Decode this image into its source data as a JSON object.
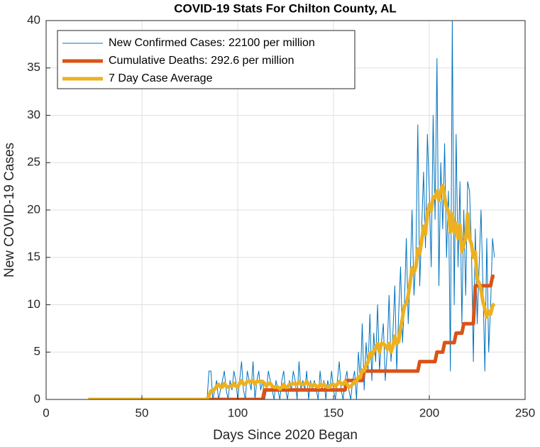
{
  "chart_data": {
    "type": "line",
    "title": "COVID-19 Stats For Chilton County, AL",
    "x_label": "Days Since 2020 Began",
    "y_label": "New COVID-19 Cases",
    "xlim": [
      0,
      250
    ],
    "ylim": [
      0,
      40
    ],
    "xticks": [
      0,
      50,
      100,
      150,
      200,
      250
    ],
    "yticks": [
      0,
      5,
      10,
      15,
      20,
      25,
      30,
      35,
      40
    ],
    "grid": true,
    "legend": "top-left",
    "x": [
      22,
      23,
      24,
      25,
      26,
      27,
      28,
      29,
      30,
      31,
      32,
      33,
      34,
      35,
      36,
      37,
      38,
      39,
      40,
      41,
      42,
      43,
      44,
      45,
      46,
      47,
      48,
      49,
      50,
      51,
      52,
      53,
      54,
      55,
      56,
      57,
      58,
      59,
      60,
      61,
      62,
      63,
      64,
      65,
      66,
      67,
      68,
      69,
      70,
      71,
      72,
      73,
      74,
      75,
      76,
      77,
      78,
      79,
      80,
      81,
      82,
      83,
      84,
      85,
      86,
      87,
      88,
      89,
      90,
      91,
      92,
      93,
      94,
      95,
      96,
      97,
      98,
      99,
      100,
      101,
      102,
      103,
      104,
      105,
      106,
      107,
      108,
      109,
      110,
      111,
      112,
      113,
      114,
      115,
      116,
      117,
      118,
      119,
      120,
      121,
      122,
      123,
      124,
      125,
      126,
      127,
      128,
      129,
      130,
      131,
      132,
      133,
      134,
      135,
      136,
      137,
      138,
      139,
      140,
      141,
      142,
      143,
      144,
      145,
      146,
      147,
      148,
      149,
      150,
      151,
      152,
      153,
      154,
      155,
      156,
      157,
      158,
      159,
      160,
      161,
      162,
      163,
      164,
      165,
      166,
      167,
      168,
      169,
      170,
      171,
      172,
      173,
      174,
      175,
      176,
      177,
      178,
      179,
      180,
      181,
      182,
      183,
      184,
      185,
      186,
      187,
      188,
      189,
      190,
      191,
      192,
      193,
      194,
      195,
      196,
      197,
      198,
      199,
      200,
      201,
      202,
      203,
      204,
      205,
      206,
      207,
      208,
      209,
      210,
      211,
      212,
      213,
      214,
      215,
      216,
      217,
      218,
      219,
      220,
      221,
      222,
      223,
      224,
      225,
      226,
      227,
      228,
      229,
      230,
      231,
      232,
      233,
      234
    ],
    "series": [
      {
        "name": "New Confirmed Cases: 22100 per million",
        "color": "#0072bd",
        "width": 1,
        "values": [
          0,
          0,
          0,
          0,
          0,
          0,
          0,
          0,
          0,
          0,
          0,
          0,
          0,
          0,
          0,
          0,
          0,
          0,
          0,
          0,
          0,
          0,
          0,
          0,
          0,
          0,
          0,
          0,
          0,
          0,
          0,
          0,
          0,
          0,
          0,
          0,
          0,
          0,
          0,
          0,
          0,
          0,
          0,
          0,
          0,
          0,
          0,
          0,
          0,
          0,
          0,
          0,
          0,
          0,
          0,
          0,
          0,
          0,
          0,
          0,
          0,
          0,
          0,
          3,
          3,
          0,
          1,
          2,
          0,
          1,
          2,
          3,
          1,
          0,
          2,
          1,
          3,
          2,
          0,
          2,
          4,
          1,
          0,
          3,
          2,
          1,
          4,
          0,
          2,
          3,
          1,
          2,
          0,
          1,
          3,
          2,
          1,
          0,
          2,
          1,
          0,
          2,
          3,
          1,
          0,
          2,
          1,
          3,
          2,
          0,
          4,
          1,
          2,
          1,
          3,
          0,
          2,
          1,
          2,
          1,
          0,
          3,
          1,
          2,
          0,
          2,
          1,
          3,
          1,
          0,
          2,
          4,
          1,
          0,
          2,
          3,
          1,
          0,
          2,
          3,
          0,
          5,
          2,
          8,
          1,
          6,
          3,
          9,
          2,
          7,
          4,
          10,
          3,
          6,
          8,
          2,
          5,
          11,
          4,
          7,
          12,
          3,
          9,
          14,
          6,
          10,
          17,
          8,
          13,
          20,
          11,
          15,
          29,
          12,
          18,
          24,
          16,
          28,
          22,
          14,
          30,
          19,
          36,
          12,
          25,
          18,
          27,
          15,
          22,
          3,
          40,
          10,
          28,
          14,
          23,
          8,
          20,
          11,
          23,
          22,
          16,
          4,
          18,
          8,
          14,
          20,
          12,
          3,
          17,
          5,
          10,
          17,
          15
        ]
      },
      {
        "name": "Cumulative Deaths: 292.6 per million",
        "color": "#d95319",
        "width": 5,
        "values": [
          0,
          0,
          0,
          0,
          0,
          0,
          0,
          0,
          0,
          0,
          0,
          0,
          0,
          0,
          0,
          0,
          0,
          0,
          0,
          0,
          0,
          0,
          0,
          0,
          0,
          0,
          0,
          0,
          0,
          0,
          0,
          0,
          0,
          0,
          0,
          0,
          0,
          0,
          0,
          0,
          0,
          0,
          0,
          0,
          0,
          0,
          0,
          0,
          0,
          0,
          0,
          0,
          0,
          0,
          0,
          0,
          0,
          0,
          0,
          0,
          0,
          0,
          0,
          0,
          0,
          0,
          0,
          0,
          0,
          0,
          0,
          0,
          0,
          0,
          0,
          0,
          0,
          0,
          0,
          0,
          0,
          0,
          0,
          0,
          0,
          0,
          0,
          0,
          0,
          0,
          0,
          0,
          1,
          1,
          1,
          1,
          1,
          1,
          1,
          1,
          1,
          1,
          1,
          1,
          1,
          1,
          1,
          1,
          1,
          1,
          1,
          1,
          1,
          1,
          1,
          1,
          1,
          1,
          1,
          1,
          1,
          1,
          1,
          1,
          1,
          1,
          1,
          1,
          1,
          1,
          1,
          1,
          1,
          1,
          1,
          2,
          2,
          2,
          2,
          2,
          2,
          2,
          2,
          2,
          3,
          3,
          3,
          3,
          3,
          3,
          3,
          3,
          3,
          3,
          3,
          3,
          3,
          3,
          3,
          3,
          3,
          3,
          3,
          3,
          3,
          3,
          3,
          3,
          3,
          3,
          3,
          3,
          3,
          4,
          4,
          4,
          4,
          4,
          4,
          4,
          4,
          4,
          5,
          5,
          5,
          5,
          6,
          6,
          6,
          6,
          6,
          6,
          7,
          7,
          7,
          7,
          8,
          8,
          8,
          8,
          8,
          8,
          12,
          12,
          12,
          12,
          12,
          12,
          12,
          12,
          12,
          13,
          13
        ]
      },
      {
        "name": "7 Day Case Average",
        "color": "#edb120",
        "width": 5,
        "values": [
          0,
          0,
          0,
          0,
          0,
          0,
          0,
          0,
          0,
          0,
          0,
          0,
          0,
          0,
          0,
          0,
          0,
          0,
          0,
          0,
          0,
          0,
          0,
          0,
          0,
          0,
          0,
          0,
          0,
          0,
          0,
          0,
          0,
          0,
          0,
          0,
          0,
          0,
          0,
          0,
          0,
          0,
          0,
          0,
          0,
          0,
          0,
          0,
          0,
          0,
          0,
          0,
          0,
          0,
          0,
          0,
          0,
          0,
          0,
          0,
          0,
          0,
          0,
          0.4,
          0.9,
          0.9,
          1.1,
          1.4,
          1.6,
          1.3,
          1.3,
          1.7,
          1.4,
          1.3,
          1.4,
          1.4,
          1.7,
          1.4,
          1.3,
          1.7,
          2.0,
          1.6,
          1.6,
          1.9,
          1.9,
          1.9,
          2.0,
          1.6,
          1.9,
          1.9,
          1.9,
          1.9,
          1.7,
          1.4,
          1.7,
          1.7,
          1.4,
          1.3,
          1.3,
          1.3,
          1.1,
          1.3,
          1.6,
          1.3,
          1.3,
          1.6,
          1.6,
          1.7,
          1.6,
          1.6,
          1.9,
          1.6,
          1.6,
          1.6,
          1.9,
          1.6,
          1.6,
          1.4,
          1.6,
          1.4,
          1.3,
          1.6,
          1.4,
          1.6,
          1.4,
          1.3,
          1.3,
          1.6,
          1.6,
          1.4,
          1.6,
          1.9,
          1.7,
          1.6,
          1.9,
          1.6,
          1.3,
          1.4,
          1.6,
          1.9,
          1.9,
          2.4,
          2.3,
          3.1,
          3.0,
          3.6,
          3.9,
          4.9,
          4.6,
          5.1,
          5.4,
          5.9,
          5.0,
          5.9,
          5.9,
          5.7,
          5.3,
          5.9,
          5.0,
          5.6,
          6.7,
          5.9,
          6.1,
          7.6,
          8.6,
          9.9,
          10.1,
          11.0,
          12.4,
          13.9,
          13.4,
          14.0,
          15.9,
          15.4,
          16.7,
          18.3,
          17.4,
          19.7,
          20.6,
          19.9,
          21.4,
          21.3,
          22.0,
          21.0,
          22.1,
          22.6,
          21.4,
          20.3,
          19.9,
          17.7,
          19.6,
          17.6,
          18.6,
          17.0,
          18.4,
          15.6,
          16.3,
          17.0,
          19.6,
          17.0,
          16.4,
          15.0,
          15.6,
          12.7,
          12.3,
          11.6,
          10.3,
          9.6,
          8.7,
          9.3,
          9.0,
          9.9,
          10.1
        ]
      }
    ]
  }
}
